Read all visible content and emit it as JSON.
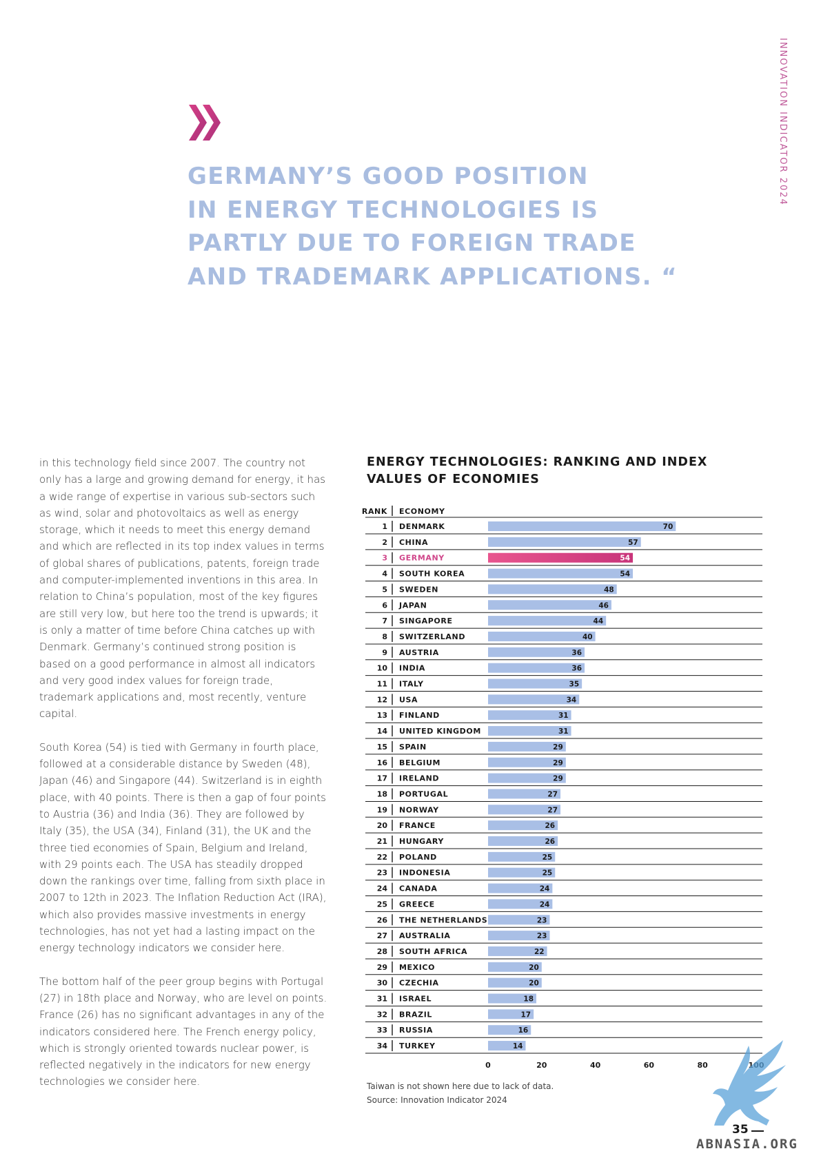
{
  "side_title": "INNOVATION INDICATOR 2024",
  "headline": [
    "GERMANY’S GOOD POSITION",
    "IN ENERGY TECHNOLOGIES IS",
    "PARTLY DUE TO FOREIGN TRADE",
    "AND TRADEMARK APPLICATIONS. “"
  ],
  "body_paragraphs": [
    "in this technology field since 2007. The country not only has a large and growing demand for energy, it has a wide range of expertise in various sub-sectors such as wind, solar and photovoltaics as well as energy storage, which it needs to meet this energy demand and which are reflected in its top index values in terms of global shares of publications, patents, foreign trade and computer-implemented inventions in this area. In relation to China’s population, most of the key figures are still very low, but here too the trend is upwards; it is only a matter of time before China catches up with Denmark. Germany’s continued strong position is based on a good performance in almost all indicators and very good index values for foreign trade, trademark applications and, most recently, venture capital.",
    "South Korea (54) is tied with Germany in fourth place, followed at a considerable distance by Sweden (48), Japan (46) and Singapore (44). Switzerland is in eighth place, with 40 points. There is then a gap of four points to Austria (36) and India (36). They are followed by Italy (35), the USA (34), Finland (31), the UK and the three tied economies of Spain, Belgium and Ireland, with 29 points each. The USA has steadily dropped down the rankings over time, falling from sixth place in 2007 to 12th in 2023. The Inflation Reduction Act (IRA), which also provides massive investments in energy technologies, has not yet had a lasting impact on the energy technology indicators we consider here.",
    "The bottom half of the peer group begins with Portugal (27) in 18th place and Norway, who are level on points. France (26) has no significant advantages in any of the indicators considered here. The French energy policy, which is strongly oriented towards nuclear power, is reflected negatively in the indicators for new energy technologies we consider here."
  ],
  "chart_data": {
    "type": "bar",
    "orientation": "horizontal",
    "title": "ENERGY TECHNOLOGIES: RANKING AND INDEX VALUES OF ECONOMIES",
    "column_headers": {
      "rank": "RANK",
      "economy": "ECONOMY"
    },
    "ranks": [
      "1",
      "2",
      "3",
      "4",
      "5",
      "6",
      "7",
      "8",
      "9",
      "10",
      "11",
      "12",
      "13",
      "14",
      "15",
      "16",
      "17",
      "18",
      "19",
      "20",
      "21",
      "22",
      "23",
      "24",
      "25",
      "26",
      "27",
      "28",
      "29",
      "30",
      "31",
      "32",
      "33",
      "34"
    ],
    "categories": [
      "DENMARK",
      "CHINA",
      "GERMANY",
      "SOUTH KOREA",
      "SWEDEN",
      "JAPAN",
      "SINGAPORE",
      "SWITZERLAND",
      "AUSTRIA",
      "INDIA",
      "ITALY",
      "USA",
      "FINLAND",
      "UNITED KINGDOM",
      "SPAIN",
      "BELGIUM",
      "IRELAND",
      "PORTUGAL",
      "NORWAY",
      "FRANCE",
      "HUNGARY",
      "POLAND",
      "INDONESIA",
      "CANADA",
      "GREECE",
      "THE NETHERLANDS",
      "AUSTRALIA",
      "SOUTH AFRICA",
      "MEXICO",
      "CZECHIA",
      "ISRAEL",
      "BRAZIL",
      "RUSSIA",
      "TURKEY"
    ],
    "values": [
      70,
      57,
      54,
      54,
      48,
      46,
      44,
      40,
      36,
      36,
      35,
      34,
      31,
      31,
      29,
      29,
      29,
      27,
      27,
      26,
      26,
      25,
      25,
      24,
      24,
      23,
      23,
      22,
      20,
      20,
      18,
      17,
      16,
      14
    ],
    "highlight": "GERMANY",
    "xlim": [
      0,
      100
    ],
    "xticks": [
      0,
      20,
      40,
      60,
      80,
      100
    ],
    "colors": {
      "bar": "#a9bfe6",
      "highlight_start": "#e8558e",
      "highlight_end": "#c8347a",
      "highlight_text": "#d0468a"
    },
    "notes": [
      "Taiwan is not shown here due to lack of data.",
      "Source: Innovation Indicator 2024"
    ]
  },
  "page_number": "35",
  "watermark": "ABNASIA.ORG"
}
